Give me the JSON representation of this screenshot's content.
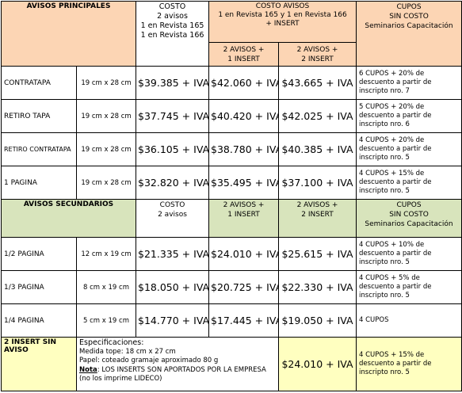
{
  "header": {
    "title": "AVISOS PRINCIPALES",
    "costo": [
      "COSTO",
      "2 avisos",
      "1 en Revista 165",
      "1 en Revista 166"
    ],
    "costo_avisos": [
      "COSTO  AVISOS",
      "1 en Revista 165 y 1 en Revista 166",
      "+ INSERT"
    ],
    "col_a": [
      "2 AVISOS +",
      "1 INSERT"
    ],
    "col_b": [
      "2 AVISOS +",
      "2 INSERT"
    ],
    "cupos": [
      "CUPOS",
      "SIN COSTO",
      "Seminarios  Capacitación"
    ]
  },
  "principal_rows": [
    {
      "name": "CONTRATAPA",
      "size": "19 cm x 28 cm",
      "prices": [
        "$39.385 + IVA",
        "$42.060 + IVA",
        "$43.665 + IVA"
      ],
      "cupos": [
        "6 CUPOS + 20% de",
        "descuento a partir de",
        "inscripto nro. 7"
      ]
    },
    {
      "name": "RETIRO TAPA",
      "size": "19 cm x 28 cm",
      "prices": [
        "$37.745  + IVA",
        "$40.420 + IVA",
        "$42.025 + IVA"
      ],
      "cupos": [
        "5 CUPOS + 20% de",
        "descuento a partir de",
        "inscripto nro. 6"
      ]
    },
    {
      "name": "RETIRO CONTRATAPA",
      "size": "19 cm x 28 cm",
      "prices": [
        "$36.105 + IVA",
        "$38.780 + IVA",
        "$40.385 + IVA"
      ],
      "cupos": [
        "4 CUPOS + 20% de",
        "descuento a partir de",
        "inscripto nro. 5"
      ]
    },
    {
      "name": "1 PAGINA",
      "size": "19 cm  x 28 cm",
      "prices": [
        "$32.820 + IVA",
        "$35.495 + IVA",
        "$37.100 + IVA"
      ],
      "cupos": [
        "4 CUPOS + 15% de",
        "descuento a partir de",
        "inscripto nro. 5"
      ]
    }
  ],
  "secondary_header": {
    "title": "AVISOS  SECUNDARIOS",
    "costo": [
      "COSTO",
      "2 avisos"
    ],
    "col_a": [
      "2 AVISOS +",
      "1 INSERT"
    ],
    "col_b": [
      "2 AVISOS +",
      "2 INSERT"
    ],
    "cupos": [
      "CUPOS",
      "SIN COSTO",
      "Seminarios  Capacitación"
    ]
  },
  "secondary_rows": [
    {
      "name": "1/2 PAGINA",
      "size": "12 cm x 19 cm",
      "prices": [
        "$21.335 + IVA",
        "$24.010 + IVA",
        "$25.615 + IVA"
      ],
      "cupos": [
        "4 CUPOS + 10%  de",
        "descuento a partir de",
        "inscripto nro. 5"
      ]
    },
    {
      "name": "1/3 PAGINA",
      "size": "8 cm x 19 cm",
      "prices": [
        "$18.050 + IVA",
        "$20.725 + IVA",
        "$22.330 + IVA"
      ],
      "cupos": [
        "4 CUPOS + 5%  de",
        "descuento a partir de",
        "inscripto nro. 5"
      ]
    },
    {
      "name": "1/4 PAGINA",
      "size": "5 cm x 19 cm",
      "prices": [
        "$14.770 + IVA",
        "$17.445 + IVA",
        "$19.050 + IVA"
      ],
      "cupos": [
        "4 CUPOS"
      ]
    }
  ],
  "insert_row": {
    "name": "2 INSERT SIN AVISO",
    "spec_title": "Especificaciones:",
    "spec_lines": [
      "Medida tope: 18 cm x 27 cm",
      "Papel: coteado gramaje aproximado  80 g"
    ],
    "nota_label": "Nota",
    "nota_text": ": LOS INSERTS SON APORTADOS POR LA EMPRESA",
    "nota_extra": "(no los imprime LIDECO)",
    "price": "$24.010 + IVA",
    "cupos": [
      "4 CUPOS + 15% de",
      "descuento a partir de",
      "inscripto nro. 5"
    ]
  }
}
